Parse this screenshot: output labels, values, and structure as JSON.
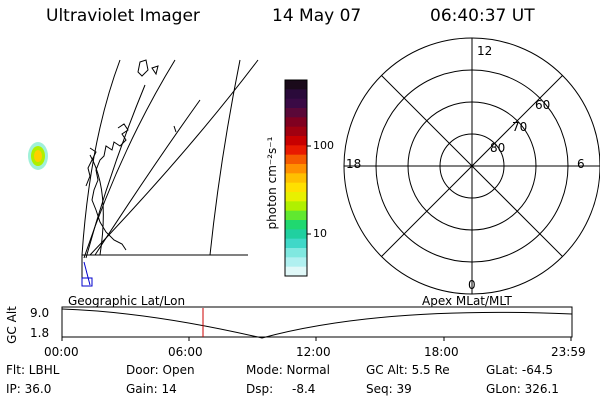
{
  "header": {
    "title": "Ultraviolet Imager",
    "date": "14 May 07",
    "time": "06:40:37 UT"
  },
  "colorbar": {
    "unit_label": "photon cm⁻²s⁻¹",
    "ticks": [
      "100",
      "10"
    ],
    "colors": [
      "#1a0a1a",
      "#2a0a3a",
      "#3a0a45",
      "#5a0838",
      "#800020",
      "#a00010",
      "#c80000",
      "#e81a00",
      "#f55a00",
      "#ff9000",
      "#ffc000",
      "#ffe000",
      "#e8f000",
      "#b0f000",
      "#60e830",
      "#20d870",
      "#20d0a0",
      "#40d8c8",
      "#80e8e0",
      "#b0f0f0",
      "#e0f8f8"
    ]
  },
  "polar_plot": {
    "labels": {
      "top": "12",
      "right": "6",
      "bottom": "0",
      "left": "18"
    },
    "lat_labels": [
      "60",
      "70",
      "80"
    ]
  },
  "timeline": {
    "ylabel": "GC Alt",
    "left_label": "Geographic Lat/Lon",
    "right_label": "Apex MLat/MLT",
    "ytick_high": "9.0",
    "ytick_low": "1.8",
    "xticks": [
      "00:00",
      "06:00",
      "12:00",
      "18:00",
      "23:59"
    ],
    "marker_color": "#cc0000"
  },
  "info": {
    "flt": "Flt: LBHL",
    "ip": "IP: 36.0",
    "door": "Door: Open",
    "gain": "Gain: 14",
    "mode": "Mode: Normal",
    "dsp_label": "Dsp:",
    "dsp_value": "-8.4",
    "gc_alt": "GC Alt: 5.5 Re",
    "seq": "Seq: 39",
    "glat": "GLat: -64.5",
    "glon": "GLon: 326.1"
  }
}
